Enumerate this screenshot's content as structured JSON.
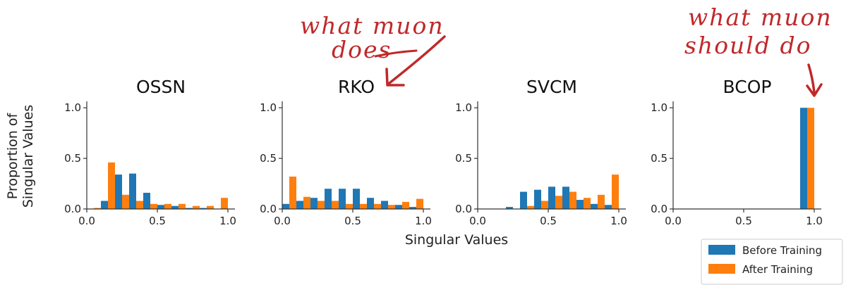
{
  "figure": {
    "ylabel_line1": "Proportion of",
    "ylabel_line2": "Singular Values",
    "xlabel": "Singular Values"
  },
  "annotations": [
    {
      "id": "muon-does",
      "line1": "what muon",
      "line2": "does",
      "color": "#c0282a"
    },
    {
      "id": "muon-should",
      "line1": "what muon",
      "line2": "should do",
      "color": "#c0282a"
    }
  ],
  "legend": [
    {
      "label": "Before Training",
      "color": "#1f77b4"
    },
    {
      "label": "After Training",
      "color": "#ff7f0e"
    }
  ],
  "chart_data": [
    {
      "type": "bar",
      "title": "OSSN",
      "xlim": [
        0,
        1.05
      ],
      "ylim": [
        0,
        1.05
      ],
      "xticks": [
        "0.0",
        "0.5",
        "1.0"
      ],
      "yticks": [
        "0.0",
        "0.5",
        "1.0"
      ],
      "bins": [
        0.05,
        0.15,
        0.25,
        0.35,
        0.45,
        0.55,
        0.65,
        0.75,
        0.85,
        0.95
      ],
      "series": [
        {
          "name": "Before Training",
          "color": "#1f77b4",
          "values": [
            0.0,
            0.08,
            0.34,
            0.35,
            0.16,
            0.04,
            0.03,
            0.01,
            0.01,
            0.0
          ]
        },
        {
          "name": "After Training",
          "color": "#ff7f0e",
          "values": [
            0.01,
            0.46,
            0.14,
            0.08,
            0.05,
            0.05,
            0.05,
            0.03,
            0.03,
            0.11
          ]
        }
      ]
    },
    {
      "type": "bar",
      "title": "RKO",
      "xlim": [
        0,
        1.05
      ],
      "ylim": [
        0,
        1.05
      ],
      "xticks": [
        "0.0",
        "0.5",
        "1.0"
      ],
      "yticks": [
        "0.0",
        "0.5",
        "1.0"
      ],
      "bins": [
        0.05,
        0.15,
        0.25,
        0.35,
        0.45,
        0.55,
        0.65,
        0.75,
        0.85,
        0.95
      ],
      "series": [
        {
          "name": "Before Training",
          "color": "#1f77b4",
          "values": [
            0.05,
            0.08,
            0.11,
            0.2,
            0.2,
            0.2,
            0.11,
            0.08,
            0.04,
            0.02
          ]
        },
        {
          "name": "After Training",
          "color": "#ff7f0e",
          "values": [
            0.32,
            0.12,
            0.08,
            0.08,
            0.05,
            0.05,
            0.05,
            0.04,
            0.07,
            0.1
          ]
        }
      ]
    },
    {
      "type": "bar",
      "title": "SVCM",
      "xlim": [
        0,
        1.05
      ],
      "ylim": [
        0,
        1.05
      ],
      "xticks": [
        "0.0",
        "0.5",
        "1.0"
      ],
      "yticks": [
        "0.0",
        "0.5",
        "1.0"
      ],
      "bins": [
        0.05,
        0.15,
        0.25,
        0.35,
        0.45,
        0.55,
        0.65,
        0.75,
        0.85,
        0.95
      ],
      "series": [
        {
          "name": "Before Training",
          "color": "#1f77b4",
          "values": [
            0.0,
            0.0,
            0.02,
            0.17,
            0.19,
            0.22,
            0.22,
            0.09,
            0.05,
            0.04
          ]
        },
        {
          "name": "After Training",
          "color": "#ff7f0e",
          "values": [
            0.0,
            0.0,
            0.0,
            0.03,
            0.08,
            0.13,
            0.17,
            0.11,
            0.14,
            0.34
          ]
        }
      ]
    },
    {
      "type": "bar",
      "title": "BCOP",
      "xlim": [
        0,
        1.05
      ],
      "ylim": [
        0,
        1.05
      ],
      "xticks": [
        "0.0",
        "0.5",
        "1.0"
      ],
      "yticks": [
        "0.0",
        "0.5",
        "1.0"
      ],
      "bins": [
        0.05,
        0.15,
        0.25,
        0.35,
        0.45,
        0.55,
        0.65,
        0.75,
        0.85,
        0.95
      ],
      "series": [
        {
          "name": "Before Training",
          "color": "#1f77b4",
          "values": [
            0,
            0,
            0,
            0,
            0,
            0,
            0,
            0,
            0,
            1.0
          ]
        },
        {
          "name": "After Training",
          "color": "#ff7f0e",
          "values": [
            0,
            0,
            0,
            0,
            0,
            0,
            0,
            0,
            0,
            1.0
          ]
        }
      ]
    }
  ]
}
